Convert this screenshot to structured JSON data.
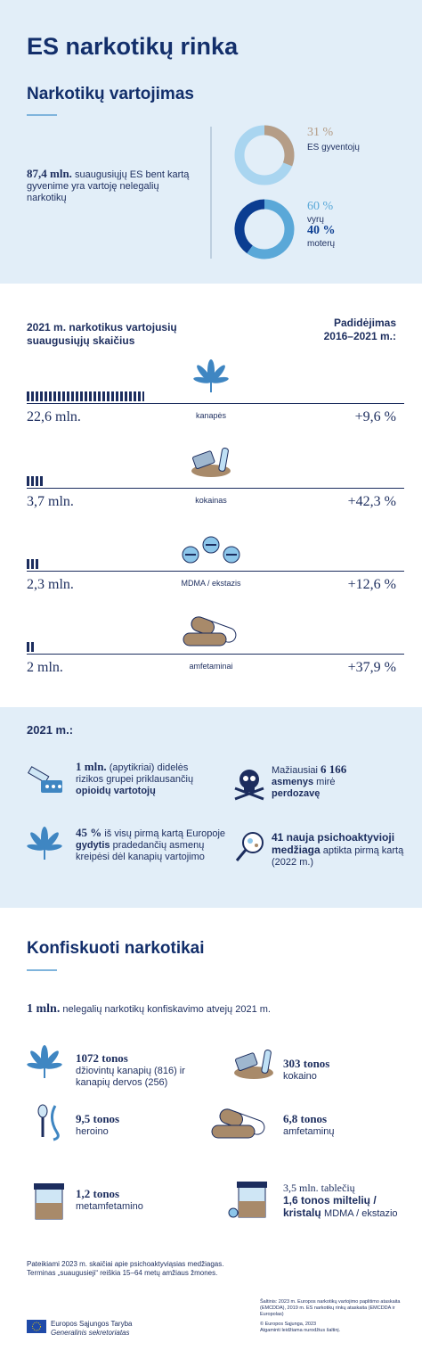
{
  "header": {
    "title": "ES narkotikų rinka"
  },
  "use": {
    "title": "Narkotikų vartojimas",
    "stat_bold": "87,4 mln.",
    "stat_text": "suaugusiųjų ES bent kartą gyvenime yra vartoję nelegalių narkotikų",
    "share": {
      "value": 31,
      "label": "31 %",
      "caption": "ES gyventojų"
    },
    "gender": [
      {
        "value": 60,
        "label": "60 %",
        "caption": "vyrų"
      },
      {
        "value": 40,
        "label": "40 %",
        "caption": "moterų"
      }
    ]
  },
  "users": {
    "title": "2021 m. narkotikus vartojusių suaugusiųjų skaičius",
    "change_title": "Padidėjimas 2016–2021 m.:",
    "rows": [
      {
        "amount": "22,6 mln.",
        "drug": "kanapės",
        "change": "+9,6 %"
      },
      {
        "amount": "3,7 mln.",
        "drug": "kokainas",
        "change": "+42,3 %"
      },
      {
        "amount": "2,3 mln.",
        "drug": "MDMA / ekstazis",
        "change": "+12,6 %"
      },
      {
        "amount": "2 mln.",
        "drug": "amfetaminai",
        "change": "+37,9 %"
      }
    ]
  },
  "facts": {
    "title": "2021 m.:",
    "items": [
      [
        "1 mln.",
        "(apytikriai) didelės rizikos grupei priklausančių",
        "opioidų vartotojų"
      ],
      [
        "Mažiausiai",
        "6 166",
        "asmenys",
        "mirė",
        "perdozavę"
      ],
      [
        "45 %",
        "iš visų pirmą kartą Europoje",
        "gydytis",
        "pradedančių asmenų kreipėsi dėl kanapių vartojimo"
      ],
      [
        "41 nauja psichoaktyvioji medžiaga",
        "aptikta pirmą kartą (2022 m.)"
      ]
    ]
  },
  "seizures": {
    "title": "Konfiskuoti narkotikai",
    "intro_bold": "1 mln.",
    "intro_text": "nelegalių narkotikų konfiskavimo atvejų 2021 m.",
    "items": [
      [
        "1072 tonos",
        "džiovintų kanapių (816) ir kanapių dervos (256)"
      ],
      [
        "303 tonos",
        "kokaino"
      ],
      [
        "9,5 tonos",
        "heroino"
      ],
      [
        "6,8 tonos",
        "amfetaminų"
      ],
      [
        "1,2 tonos",
        "metamfetamino"
      ],
      [
        "3,5 mln. tablečių",
        "1,6 tonos miltelių /",
        "kristalų",
        "MDMA / ekstazio"
      ]
    ]
  },
  "footer": {
    "notes": [
      "Pateikiami 2023 m. skaičiai apie psichoaktyviąsias medžiagas.",
      "Terminas „suaugusieji“ reiškia 15–64 metų amžiaus žmones."
    ],
    "sources": [
      "Šaltinis: 2023 m. Europos narkotikų vartojimo paplitimo ataskaita (EMCDDA), 2019 m. ES narkotikų rinkų ataskaita (EMCDDA ir Europolas)",
      "© Europos Sąjunga, 2023",
      "Atgaminti leidžiama nurodžius šaltinį."
    ],
    "logo": [
      "Europos Sąjungos Taryba",
      "Generalinis sekretoriatas"
    ]
  }
}
